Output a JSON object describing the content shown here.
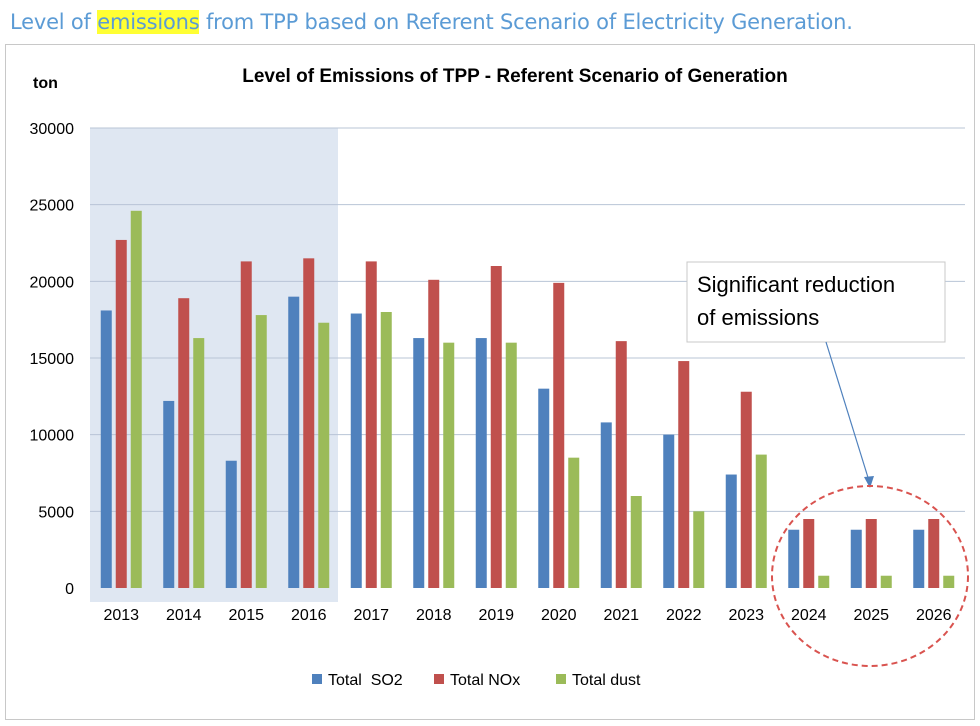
{
  "heading": {
    "pre": "Level of ",
    "highlight": "emissions",
    "post": " from TPP based on Referent Scenario of Electricity Generation."
  },
  "chart_data": {
    "type": "bar",
    "title": "Level of Emissions of TPP - Referent Scenario of Generation",
    "ylabel": "ton",
    "xlabel": "",
    "ylim": [
      0,
      30000
    ],
    "yticks": [
      0,
      5000,
      10000,
      15000,
      20000,
      25000,
      30000
    ],
    "grid": true,
    "legend_position": "bottom",
    "categories": [
      "2013",
      "2014",
      "2015",
      "2016",
      "2017",
      "2018",
      "2019",
      "2020",
      "2021",
      "2022",
      "2023",
      "2024",
      "2025",
      "2026"
    ],
    "series": [
      {
        "name": "Total  SO2",
        "color": "#4f81bd",
        "values": [
          18100,
          12200,
          8300,
          19000,
          17900,
          16300,
          16300,
          13000,
          10800,
          10000,
          7400,
          3800,
          3800,
          3800
        ]
      },
      {
        "name": "Total NOx",
        "color": "#c0504d",
        "values": [
          22700,
          18900,
          21300,
          21500,
          21300,
          20100,
          21000,
          19900,
          16100,
          14800,
          12800,
          4500,
          4500,
          4500
        ]
      },
      {
        "name": "Total dust",
        "color": "#9bbb59",
        "values": [
          24600,
          16300,
          17800,
          17300,
          18000,
          16000,
          16000,
          8500,
          6000,
          5000,
          8700,
          800,
          800,
          800
        ]
      }
    ],
    "shaded_categories": [
      "2013",
      "2016"
    ],
    "annotation": {
      "lines": [
        "Significant reduction",
        "of emissions"
      ],
      "target_categories": [
        "2024",
        "2026"
      ]
    }
  }
}
